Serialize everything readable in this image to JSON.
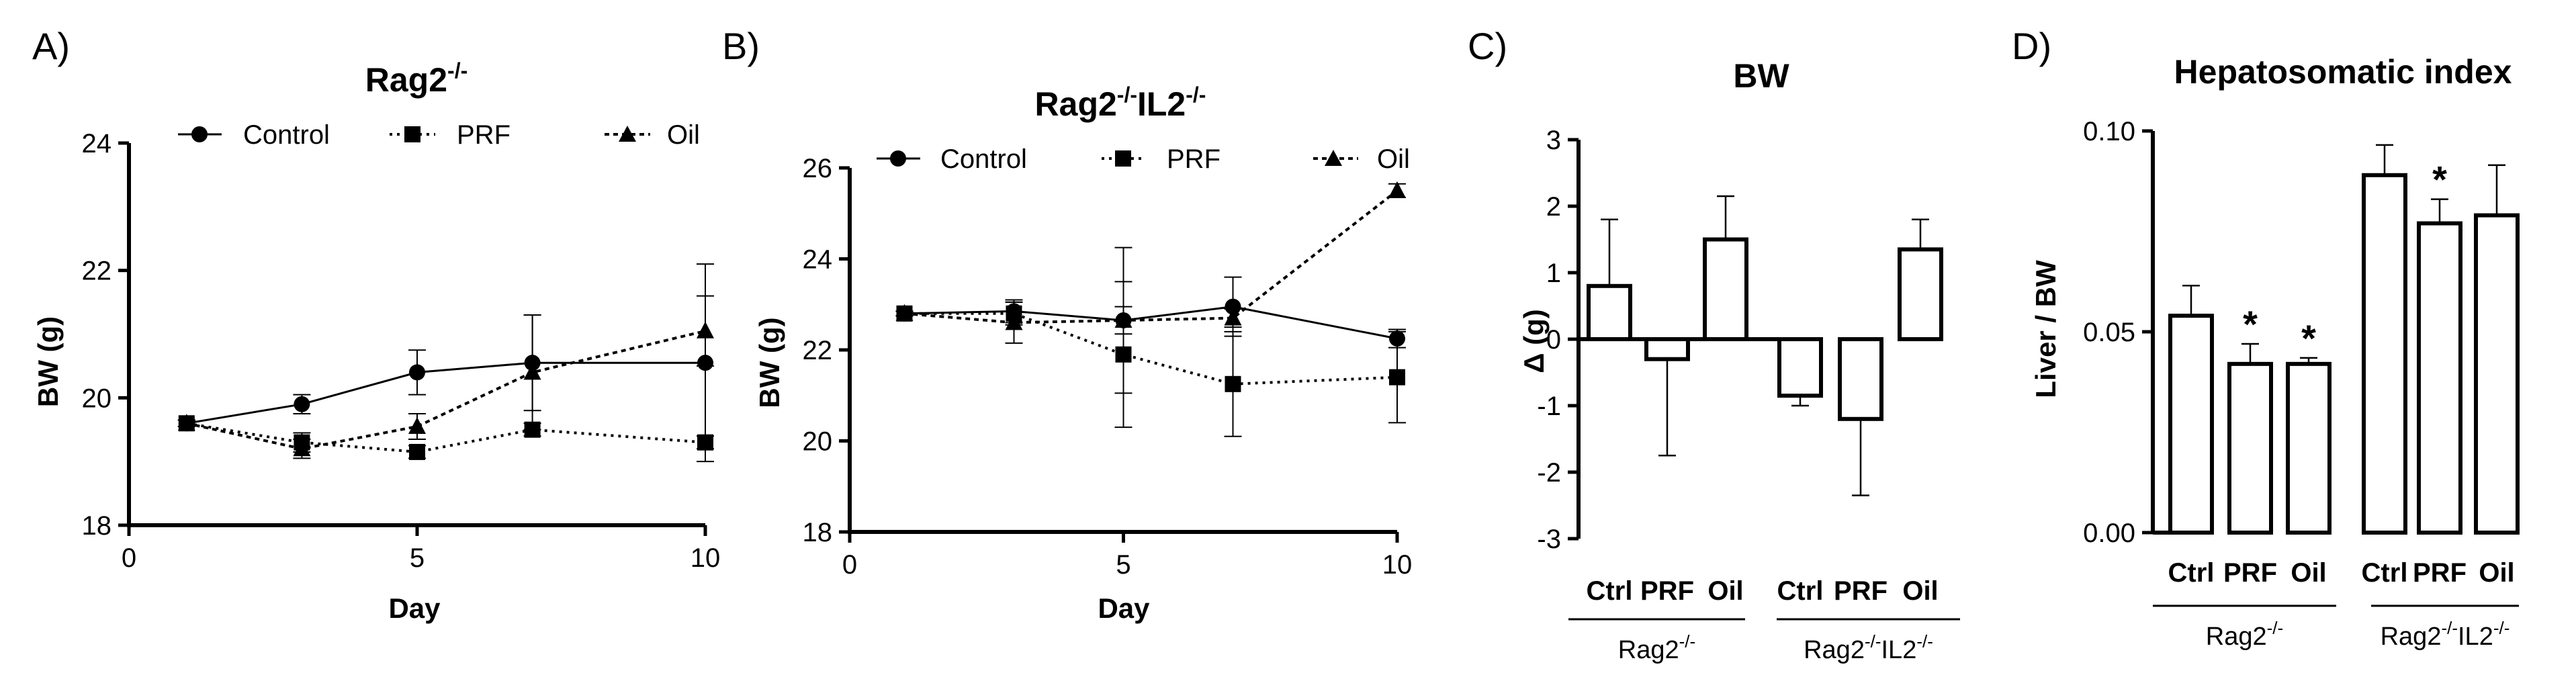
{
  "panels": {
    "A": "A)",
    "B": "B)",
    "C": "C)",
    "D": "D)"
  },
  "colors": {
    "ink": "#000000",
    "bar_fill": "#ffffff"
  },
  "chart_data": [
    {
      "id": "A",
      "type": "line",
      "title": {
        "main": "Rag2",
        "sup": "-/-"
      },
      "xlabel": "Day",
      "ylabel": "BW (g)",
      "xlim": [
        0,
        10
      ],
      "ylim": [
        18,
        24
      ],
      "xticks": [
        0,
        5,
        10
      ],
      "yticks": [
        18,
        20,
        22,
        24
      ],
      "series": [
        {
          "name": "Control",
          "marker": "circle",
          "line": "solid",
          "x": [
            1,
            3,
            5,
            7,
            10
          ],
          "y": [
            19.6,
            19.9,
            20.4,
            20.55,
            20.55
          ],
          "err": [
            0.05,
            0.15,
            0.35,
            0.75,
            1.55
          ]
        },
        {
          "name": "PRF",
          "marker": "square",
          "line": "dotted",
          "x": [
            1,
            3,
            5,
            7,
            10
          ],
          "y": [
            19.6,
            19.3,
            19.15,
            19.5,
            19.3
          ],
          "err": [
            0.05,
            0.15,
            0.1,
            0.1,
            0.1
          ]
        },
        {
          "name": "Oil",
          "marker": "triangle",
          "line": "dashed",
          "x": [
            1,
            3,
            5,
            7,
            10
          ],
          "y": [
            19.6,
            19.2,
            19.55,
            20.4,
            21.05
          ],
          "err": [
            0.05,
            0.15,
            0.2,
            0.9,
            0.55
          ]
        }
      ]
    },
    {
      "id": "B",
      "type": "line",
      "title": {
        "main": "Rag2",
        "sup": "-/-",
        "main2": "IL2",
        "sup2": "-/-"
      },
      "xlabel": "Day",
      "ylabel": "BW (g)",
      "xlim": [
        0,
        10
      ],
      "ylim": [
        18,
        26
      ],
      "xticks": [
        0,
        5,
        10
      ],
      "yticks": [
        18,
        20,
        22,
        24,
        26
      ],
      "series": [
        {
          "name": "Control",
          "marker": "circle",
          "line": "solid",
          "x": [
            1,
            3,
            5,
            7,
            10
          ],
          "y": [
            22.8,
            22.85,
            22.65,
            22.95,
            22.25
          ],
          "err": [
            0.05,
            0.25,
            1.6,
            0.65,
            0.2
          ]
        },
        {
          "name": "PRF",
          "marker": "square",
          "line": "dotted",
          "x": [
            1,
            3,
            5,
            7,
            10
          ],
          "y": [
            22.8,
            22.8,
            21.9,
            21.25,
            21.4
          ],
          "err": [
            0.05,
            0.25,
            1.6,
            1.15,
            1.0
          ]
        },
        {
          "name": "Oil",
          "marker": "triangle",
          "line": "dashed",
          "x": [
            1,
            3,
            5,
            7,
            10
          ],
          "y": [
            22.8,
            22.6,
            22.65,
            22.7,
            25.5
          ],
          "err": [
            0.05,
            0.45,
            0.3,
            0.2,
            0.15
          ]
        }
      ]
    },
    {
      "id": "C",
      "type": "bar",
      "title": "BW",
      "ylabel": "Δ (g)",
      "ylim": [
        -3,
        3
      ],
      "yticks": [
        -3,
        -2,
        -1,
        0,
        1,
        2,
        3
      ],
      "categories": [
        "Ctrl",
        "PRF",
        "Oil",
        "Ctrl",
        "PRF",
        "Oil"
      ],
      "values": [
        0.8,
        -0.3,
        1.5,
        -0.85,
        -1.2,
        1.35
      ],
      "err": [
        1.0,
        1.45,
        0.65,
        0.15,
        1.15,
        0.45
      ],
      "groups": [
        {
          "label": "Rag2",
          "sup": "-/-",
          "label2": "",
          "sup2": ""
        },
        {
          "label": "Rag2",
          "sup": "-/-",
          "label2": "IL2",
          "sup2": "-/-"
        }
      ]
    },
    {
      "id": "D",
      "type": "bar",
      "title": "Hepatosomatic index",
      "ylabel": "Liver / BW",
      "ylim": [
        0,
        0.1
      ],
      "yticks": [
        0,
        0.05,
        0.1
      ],
      "ytick_labels": [
        "0.00",
        "0.05",
        "0.10"
      ],
      "categories": [
        "Ctrl",
        "PRF",
        "Oil",
        "Ctrl",
        "PRF",
        "Oil"
      ],
      "values": [
        0.054,
        0.042,
        0.042,
        0.089,
        0.077,
        0.079
      ],
      "err": [
        0.0075,
        0.005,
        0.0015,
        0.0075,
        0.006,
        0.0125
      ],
      "significance": [
        "",
        "*",
        "*",
        "",
        "*",
        ""
      ],
      "groups": [
        {
          "label": "Rag2",
          "sup": "-/-",
          "label2": "",
          "sup2": ""
        },
        {
          "label": "Rag2",
          "sup": "-/-",
          "label2": "IL2",
          "sup2": "-/-"
        }
      ]
    }
  ]
}
